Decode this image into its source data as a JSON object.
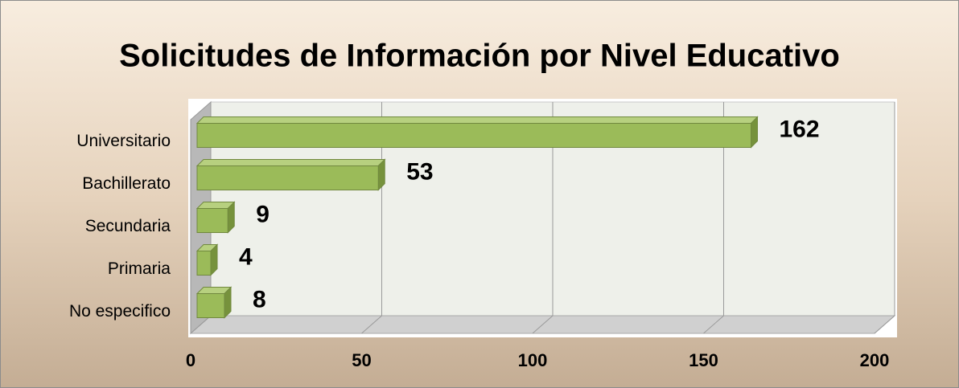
{
  "chart_data": {
    "type": "bar",
    "orientation": "horizontal",
    "title": "Solicitudes de Información  por Nivel Educativo",
    "categories": [
      "Universitario",
      "Bachillerato",
      "Secundaria",
      "Primaria",
      "No especifico"
    ],
    "values": [
      162,
      53,
      9,
      4,
      8
    ],
    "color": "#9bbb59",
    "xlim": [
      0,
      200
    ],
    "xticks": [
      0,
      50,
      100,
      150,
      200
    ],
    "grid": true
  }
}
